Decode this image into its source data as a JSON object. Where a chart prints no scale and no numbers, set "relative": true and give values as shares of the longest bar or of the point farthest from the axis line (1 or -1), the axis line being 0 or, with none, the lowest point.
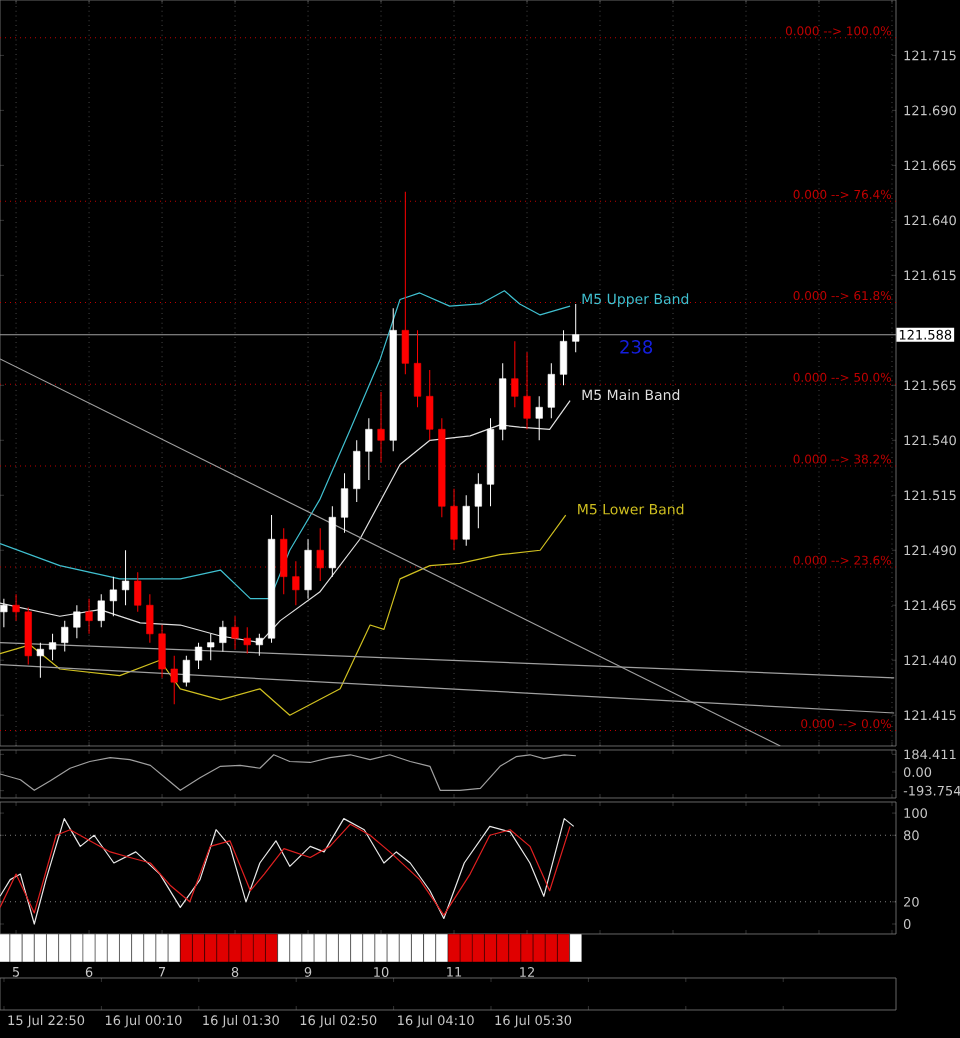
{
  "chart_data": [
    {
      "type": "candlestick",
      "x": [
        4.833,
        5.0,
        5.167,
        5.333,
        5.5,
        5.667,
        5.833,
        6.0,
        6.167,
        6.333,
        6.5,
        6.667,
        6.833,
        7.0,
        7.167,
        7.333,
        7.5,
        7.667,
        7.833,
        8.0,
        8.167,
        8.333,
        8.5,
        8.667,
        8.833,
        9.0,
        9.167,
        9.333,
        9.5,
        9.667,
        9.833,
        10.0,
        10.167,
        10.333,
        10.5,
        10.667,
        10.833,
        11.0,
        11.167,
        11.333,
        11.5,
        11.667,
        11.833,
        12.0,
        12.167,
        12.333,
        12.5,
        12.667
      ],
      "ohlc": [
        [
          121.462,
          121.468,
          121.455,
          121.465
        ],
        [
          121.465,
          121.47,
          121.458,
          121.462
        ],
        [
          121.462,
          121.464,
          121.438,
          121.442
        ],
        [
          121.442,
          121.448,
          121.432,
          121.445
        ],
        [
          121.445,
          121.452,
          121.44,
          121.448
        ],
        [
          121.448,
          121.458,
          121.444,
          121.455
        ],
        [
          121.455,
          121.465,
          121.45,
          121.462
        ],
        [
          121.462,
          121.468,
          121.452,
          121.458
        ],
        [
          121.458,
          121.47,
          121.455,
          121.467
        ],
        [
          121.467,
          121.478,
          121.46,
          121.472
        ],
        [
          121.472,
          121.49,
          121.465,
          121.476
        ],
        [
          121.476,
          121.48,
          121.462,
          121.465
        ],
        [
          121.465,
          121.47,
          121.448,
          121.452
        ],
        [
          121.452,
          121.456,
          121.432,
          121.436
        ],
        [
          121.436,
          121.442,
          121.42,
          121.43
        ],
        [
          121.43,
          121.442,
          121.428,
          121.44
        ],
        [
          121.44,
          121.448,
          121.436,
          121.446
        ],
        [
          121.446,
          121.452,
          121.44,
          121.448
        ],
        [
          121.448,
          121.458,
          121.444,
          121.455
        ],
        [
          121.455,
          121.46,
          121.445,
          121.45
        ],
        [
          121.45,
          121.455,
          121.443,
          121.447
        ],
        [
          121.447,
          121.452,
          121.442,
          121.45
        ],
        [
          121.45,
          121.506,
          121.448,
          121.495
        ],
        [
          121.495,
          121.5,
          121.47,
          121.478
        ],
        [
          121.478,
          121.485,
          121.465,
          121.472
        ],
        [
          121.472,
          121.495,
          121.468,
          121.49
        ],
        [
          121.49,
          121.5,
          121.476,
          121.482
        ],
        [
          121.482,
          121.51,
          121.478,
          121.505
        ],
        [
          121.505,
          121.525,
          121.498,
          121.518
        ],
        [
          121.518,
          121.54,
          121.512,
          121.535
        ],
        [
          121.535,
          121.55,
          121.522,
          121.545
        ],
        [
          121.545,
          121.562,
          121.53,
          121.54
        ],
        [
          121.54,
          121.6,
          121.535,
          121.59
        ],
        [
          121.59,
          121.653,
          121.57,
          121.575
        ],
        [
          121.575,
          121.59,
          121.555,
          121.56
        ],
        [
          121.56,
          121.572,
          121.54,
          121.545
        ],
        [
          121.545,
          121.55,
          121.505,
          121.51
        ],
        [
          121.51,
          121.518,
          121.49,
          121.495
        ],
        [
          121.495,
          121.515,
          121.492,
          121.51
        ],
        [
          121.51,
          121.525,
          121.5,
          121.52
        ],
        [
          121.52,
          121.55,
          121.51,
          121.545
        ],
        [
          121.545,
          121.575,
          121.54,
          121.568
        ],
        [
          121.568,
          121.585,
          121.555,
          121.56
        ],
        [
          121.56,
          121.58,
          121.545,
          121.55
        ],
        [
          121.55,
          121.56,
          121.54,
          121.555
        ],
        [
          121.555,
          121.575,
          121.55,
          121.57
        ],
        [
          121.57,
          121.59,
          121.565,
          121.585
        ],
        [
          121.585,
          121.602,
          121.58,
          121.588
        ]
      ],
      "colors": [
        "#ffffff",
        "#ff0000",
        "#ff0000",
        "#ffffff",
        "#ffffff",
        "#ffffff",
        "#ffffff",
        "#ff0000",
        "#ffffff",
        "#ffffff",
        "#ffffff",
        "#ff0000",
        "#ff0000",
        "#ff0000",
        "#ff0000",
        "#ffffff",
        "#ffffff",
        "#ffffff",
        "#ffffff",
        "#ff0000",
        "#ff0000",
        "#ffffff",
        "#ffffff",
        "#ff0000",
        "#ff0000",
        "#ffffff",
        "#ff0000",
        "#ffffff",
        "#ffffff",
        "#ffffff",
        "#ffffff",
        "#ff0000",
        "#ffffff",
        "#ff0000",
        "#ff0000",
        "#ff0000",
        "#ff0000",
        "#ff0000",
        "#ffffff",
        "#ffffff",
        "#ffffff",
        "#ffffff",
        "#ff0000",
        "#ff0000",
        "#ffffff",
        "#ffffff",
        "#ffffff",
        "#ffffff"
      ],
      "series": [
        {
          "type": "line",
          "name": "M5 Upper Band",
          "color": "#40c0d0",
          "x": [
            4.78,
            5.6,
            6.42,
            7.25,
            7.8,
            8.21,
            8.48,
            8.75,
            9.16,
            9.58,
            9.99,
            10.26,
            10.53,
            10.94,
            11.36,
            11.69,
            11.9,
            12.18,
            12.59
          ],
          "values": [
            121.493,
            121.483,
            121.477,
            121.477,
            121.481,
            121.468,
            121.468,
            121.49,
            121.513,
            121.545,
            121.577,
            121.604,
            121.607,
            121.601,
            121.602,
            121.608,
            121.602,
            121.597,
            121.601
          ]
        },
        {
          "type": "line",
          "name": "M5 Main Band",
          "color": "#e0e0e0",
          "x": [
            4.78,
            5.6,
            6.15,
            6.7,
            7.25,
            7.8,
            8.34,
            8.62,
            9.16,
            9.71,
            10.26,
            10.67,
            11.22,
            11.63,
            11.9,
            12.31,
            12.59
          ],
          "values": [
            121.466,
            121.46,
            121.463,
            121.457,
            121.456,
            121.451,
            121.448,
            121.458,
            121.471,
            121.495,
            121.529,
            121.54,
            121.542,
            121.547,
            121.546,
            121.545,
            121.558
          ]
        },
        {
          "type": "line",
          "name": "M5 Lower Band",
          "color": "#d0c020",
          "x": [
            4.78,
            5.19,
            5.6,
            6.42,
            6.97,
            7.25,
            7.8,
            8.34,
            8.75,
            9.44,
            9.85,
            10.04,
            10.26,
            10.67,
            11.08,
            11.63,
            12.18,
            12.53
          ],
          "values": [
            121.443,
            121.447,
            121.436,
            121.433,
            121.44,
            121.427,
            121.422,
            121.427,
            121.415,
            121.427,
            121.456,
            121.454,
            121.477,
            121.483,
            121.484,
            121.488,
            121.49,
            121.506
          ]
        },
        {
          "type": "line",
          "color": "#a0a0a0",
          "x": [
            4.78,
            15.47
          ],
          "values": [
            121.577,
            121.401
          ]
        },
        {
          "type": "line",
          "color": "#a0a0a0",
          "x": [
            4.78,
            17.03
          ],
          "values": [
            121.448,
            121.432
          ]
        },
        {
          "type": "line",
          "color": "#a0a0a0",
          "x": [
            4.78,
            17.03
          ],
          "values": [
            121.438,
            121.416
          ]
        }
      ],
      "xlim": [
        4.78,
        17.055
      ],
      "xticks": [
        5,
        6,
        7,
        8,
        9,
        10,
        11,
        12,
        13,
        14,
        15,
        16,
        17
      ],
      "ylim": [
        121.401,
        121.7402
      ],
      "yticks": [
        {
          "value": 121.415,
          "label": "121.415"
        },
        {
          "value": 121.44,
          "label": "121.440"
        },
        {
          "value": 121.465,
          "label": "121.465"
        },
        {
          "value": 121.49,
          "label": "121.490"
        },
        {
          "value": 121.515,
          "label": "121.515"
        },
        {
          "value": 121.54,
          "label": "121.540"
        },
        {
          "value": 121.565,
          "label": "121.565"
        },
        {
          "value": 121.615,
          "label": "121.615"
        },
        {
          "value": 121.64,
          "label": "121.640"
        },
        {
          "value": 121.665,
          "label": "121.665"
        },
        {
          "value": 121.69,
          "label": "121.690"
        },
        {
          "value": 121.715,
          "label": "121.715"
        }
      ],
      "y2lim": [
        -2.22,
        105.46
      ],
      "ref_lines": [
        {
          "axis": "y2",
          "value": 100,
          "label": "0.000 --> 100.0%",
          "color": "#c00000",
          "line_style": "dotted"
        },
        {
          "axis": "y2",
          "value": 76.4,
          "label": "0.000 --> 76.4%",
          "color": "#c00000",
          "line_style": "dotted"
        },
        {
          "axis": "y2",
          "value": 61.8,
          "label": "0.000 --> 61.8%",
          "color": "#c00000",
          "line_style": "dotted"
        },
        {
          "axis": "y2",
          "value": 50,
          "label": "0.000 --> 50.0%",
          "color": "#c00000",
          "line_style": "dotted"
        },
        {
          "axis": "y2",
          "value": 38.2,
          "label": "0.000 --> 38.2%",
          "color": "#c00000",
          "line_style": "dotted"
        },
        {
          "axis": "y2",
          "value": 23.6,
          "label": "0.000 --> 23.6%",
          "color": "#c00000",
          "line_style": "dotted"
        },
        {
          "axis": "y2",
          "value": 0,
          "label": "0.000 --> 0.0%",
          "color": "#c00000",
          "line_style": "dotted"
        },
        {
          "axis": "y",
          "value": 121.588,
          "label": "121.588",
          "color": "#a0a0a0",
          "line_style": "solid"
        }
      ],
      "annotations": [
        "238"
      ],
      "grid": "x",
      "tick_labels": "y"
    },
    {
      "type": "line",
      "series": [
        {
          "type": "line",
          "color": "#a0a0a0",
          "x": [
            4.78,
            5.06,
            5.25,
            5.47,
            5.74,
            6.01,
            6.29,
            6.56,
            6.84,
            7.11,
            7.25,
            7.52,
            7.8,
            8.07,
            8.34,
            8.53,
            8.75,
            9.03,
            9.3,
            9.58,
            9.85,
            10.12,
            10.4,
            10.67,
            10.81,
            11.08,
            11.36,
            11.63,
            11.85,
            12.04,
            12.23,
            12.51,
            12.67
          ],
          "values": [
            -20,
            -80,
            -190,
            -90,
            40,
            110,
            150,
            130,
            70,
            -100,
            -190,
            -60,
            60,
            70,
            40,
            180,
            110,
            100,
            150,
            180,
            130,
            180,
            110,
            60,
            -190,
            -190,
            -170,
            60,
            160,
            180,
            140,
            180,
            170
          ]
        }
      ],
      "xlim": [
        4.78,
        17.055
      ],
      "xticks": [
        5,
        6,
        7,
        8,
        9,
        10,
        11,
        12,
        13,
        14,
        15,
        16,
        17
      ],
      "ylim": [
        -270,
        230
      ],
      "yticks": [
        {
          "value": 184.411,
          "label": "184.411"
        },
        {
          "value": 0,
          "label": "0.00"
        },
        {
          "value": -193.754,
          "label": "-193.754"
        }
      ],
      "tick_labels": "y"
    },
    {
      "type": "line",
      "series": [
        {
          "type": "line",
          "color": "#e8e8e8",
          "x": [
            4.78,
            4.92,
            5.06,
            5.25,
            5.41,
            5.66,
            5.88,
            6.07,
            6.34,
            6.64,
            6.97,
            7.25,
            7.52,
            7.74,
            7.93,
            8.15,
            8.34,
            8.56,
            8.75,
            9.03,
            9.22,
            9.49,
            9.77,
            10.04,
            10.21,
            10.4,
            10.67,
            10.86,
            11.14,
            11.49,
            11.77,
            12.04,
            12.23,
            12.51,
            12.64
          ],
          "values": [
            25,
            40,
            45,
            0,
            40,
            95,
            70,
            80,
            55,
            65,
            45,
            15,
            40,
            85,
            70,
            20,
            55,
            75,
            52,
            70,
            65,
            95,
            85,
            55,
            65,
            55,
            30,
            5,
            55,
            88,
            83,
            55,
            25,
            95,
            88
          ]
        },
        {
          "type": "line",
          "color": "#e02020",
          "x": [
            4.78,
            5.0,
            5.25,
            5.55,
            5.74,
            6.01,
            6.29,
            6.56,
            6.84,
            7.11,
            7.38,
            7.66,
            7.93,
            8.21,
            8.4,
            8.67,
            9.03,
            9.3,
            9.58,
            9.85,
            10.12,
            10.53,
            10.86,
            11.22,
            11.49,
            11.77,
            12.04,
            12.31,
            12.59
          ],
          "values": [
            15,
            45,
            10,
            80,
            85,
            75,
            65,
            60,
            55,
            35,
            20,
            70,
            75,
            30,
            45,
            68,
            60,
            70,
            90,
            80,
            65,
            40,
            8,
            45,
            80,
            85,
            70,
            30,
            88
          ]
        }
      ],
      "xlim": [
        4.78,
        17.055
      ],
      "xticks": [
        5,
        6,
        7,
        8,
        9,
        10,
        11,
        12,
        13,
        14,
        15,
        16,
        17
      ],
      "ylim": [
        -9,
        110
      ],
      "yticks": [
        0,
        20,
        80,
        100
      ],
      "ref_lines": [
        {
          "axis": "y",
          "value": 80,
          "color": "#808080",
          "line_style": "dotted"
        },
        {
          "axis": "y",
          "value": 20,
          "color": "#808080",
          "line_style": "dotted"
        }
      ],
      "tick_labels": "y"
    },
    {
      "type": "bar",
      "relative": true,
      "x": [
        4.833,
        5.0,
        5.167,
        5.333,
        5.5,
        5.667,
        5.833,
        6.0,
        6.167,
        6.333,
        6.5,
        6.667,
        6.833,
        7.0,
        7.167,
        7.333,
        7.5,
        7.667,
        7.833,
        8.0,
        8.167,
        8.333,
        8.5,
        8.667,
        8.833,
        9.0,
        9.167,
        9.333,
        9.5,
        9.667,
        9.833,
        10.0,
        10.167,
        10.333,
        10.5,
        10.667,
        10.833,
        11.0,
        11.167,
        11.333,
        11.5,
        11.667,
        11.833,
        12.0,
        12.167,
        12.333,
        12.5,
        12.667
      ],
      "values": [
        1,
        1,
        1,
        1,
        1,
        1,
        1,
        1,
        1,
        1,
        1,
        1,
        1,
        1,
        1,
        1,
        1,
        1,
        1,
        1,
        1,
        1,
        1,
        1,
        1,
        1,
        1,
        1,
        1,
        1,
        1,
        1,
        1,
        1,
        1,
        1,
        1,
        1,
        1,
        1,
        1,
        1,
        1,
        1,
        1,
        1,
        1,
        1
      ],
      "colors": [
        "#ffffff",
        "#ffffff",
        "#ffffff",
        "#ffffff",
        "#ffffff",
        "#ffffff",
        "#ffffff",
        "#ffffff",
        "#ffffff",
        "#ffffff",
        "#ffffff",
        "#ffffff",
        "#ffffff",
        "#ffffff",
        "#ffffff",
        "#e00000",
        "#e00000",
        "#e00000",
        "#e00000",
        "#e00000",
        "#e00000",
        "#e00000",
        "#e00000",
        "#ffffff",
        "#ffffff",
        "#ffffff",
        "#ffffff",
        "#ffffff",
        "#ffffff",
        "#ffffff",
        "#ffffff",
        "#ffffff",
        "#ffffff",
        "#ffffff",
        "#ffffff",
        "#ffffff",
        "#ffffff",
        "#e00000",
        "#e00000",
        "#e00000",
        "#e00000",
        "#e00000",
        "#e00000",
        "#e00000",
        "#e00000",
        "#e00000",
        "#e00000",
        "#ffffff"
      ],
      "xlim": [
        4.78,
        17.055
      ],
      "xticks": [
        5,
        6,
        7,
        8,
        9,
        10,
        11,
        12
      ],
      "tick_labels": "x"
    },
    {
      "type": "other",
      "categories": [
        "15 Jul 22:50",
        "16 Jul 00:10",
        "16 Jul 01:30",
        "16 Jul 02:50",
        "16 Jul 04:10",
        "16 Jul 05:30",
        null,
        null,
        null
      ]
    }
  ]
}
